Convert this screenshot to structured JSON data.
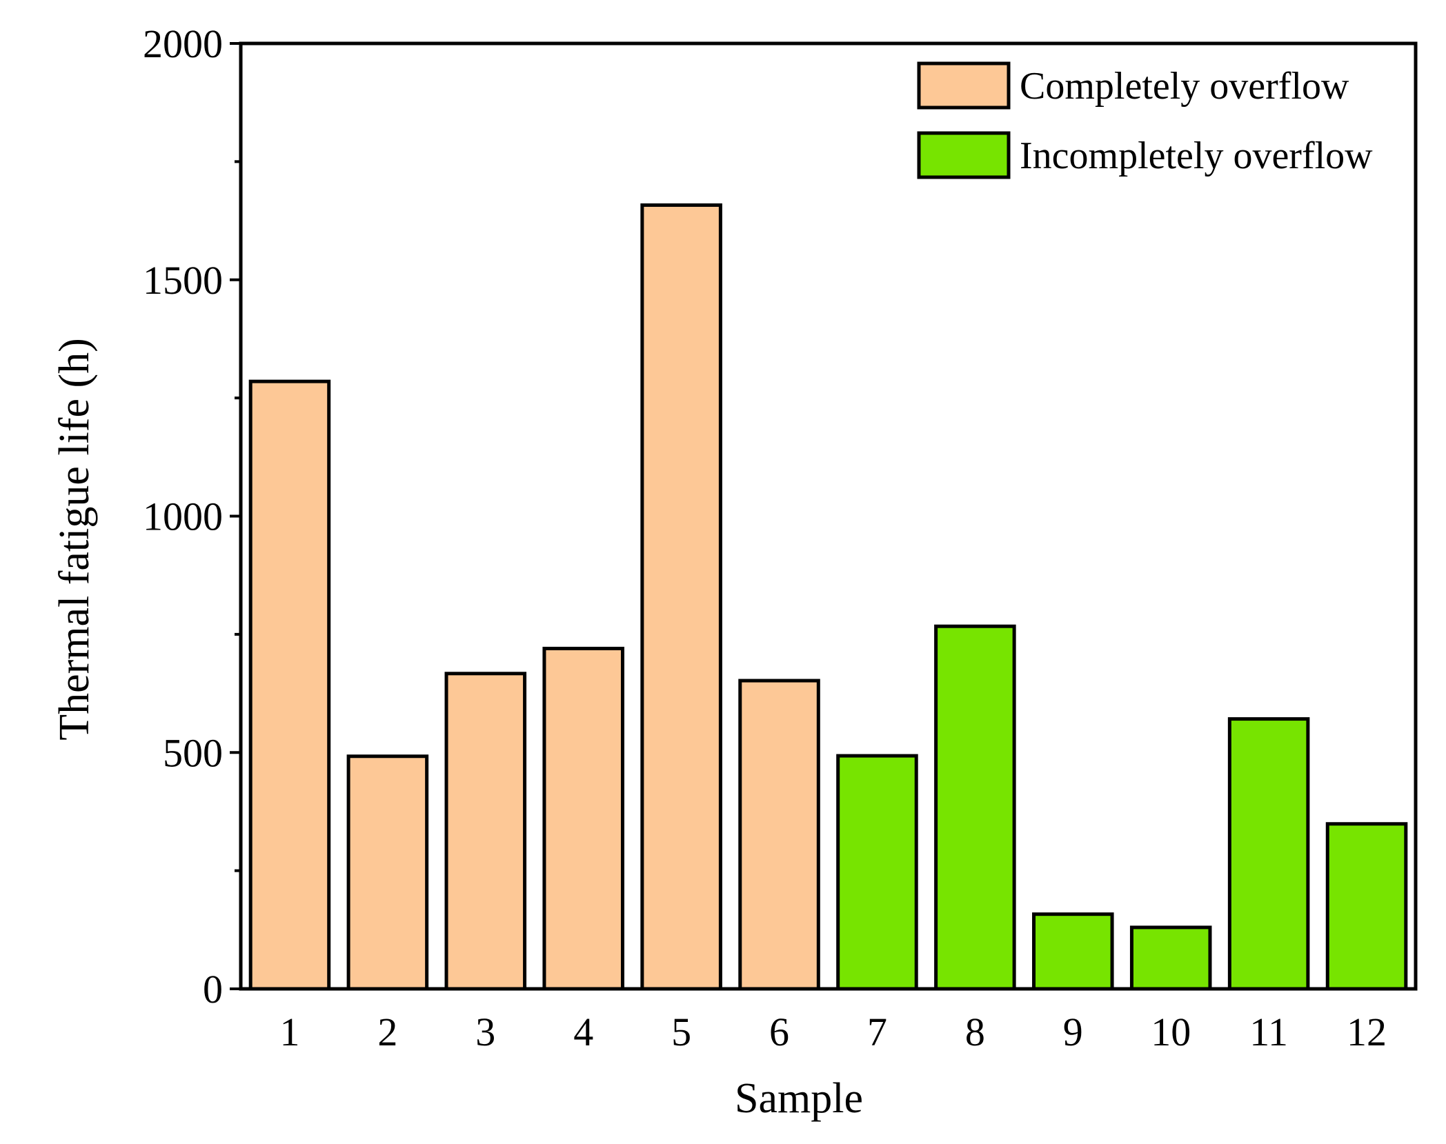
{
  "chart_data": {
    "type": "bar",
    "title": "",
    "xlabel": "Sample",
    "ylabel": "Thermal fatigue life (h)",
    "ylim": [
      0,
      2000
    ],
    "y_major_ticks": [
      0,
      500,
      1000,
      1500,
      2000
    ],
    "y_minor_ticks": [
      250,
      750,
      1250,
      1750
    ],
    "categories": [
      "1",
      "2",
      "3",
      "4",
      "5",
      "6",
      "7",
      "8",
      "9",
      "10",
      "11",
      "12"
    ],
    "values": [
      1285,
      492,
      667,
      720,
      1658,
      652,
      493,
      767,
      158,
      130,
      571,
      349
    ],
    "groups": [
      "completely",
      "completely",
      "completely",
      "completely",
      "completely",
      "completely",
      "incompletely",
      "incompletely",
      "incompletely",
      "incompletely",
      "incompletely",
      "incompletely"
    ],
    "legend_position": "top-right",
    "legend": [
      {
        "key": "completely",
        "label": "Completely overflow",
        "color": "#FDC896"
      },
      {
        "key": "incompletely",
        "label": "Incompletely overflow",
        "color": "#77E400"
      }
    ]
  }
}
